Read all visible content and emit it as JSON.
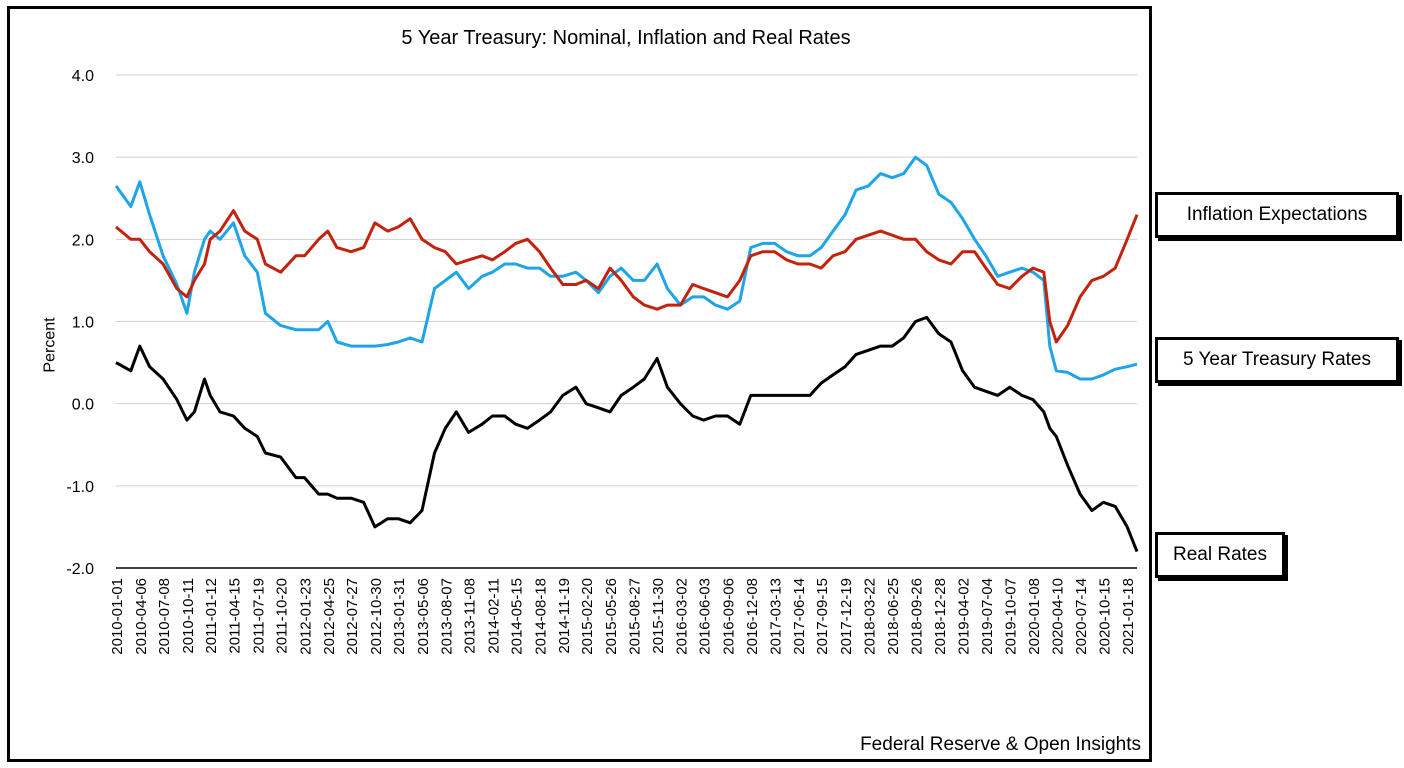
{
  "chart_data": {
    "type": "line",
    "title": "5 Year Treasury: Nominal, Inflation and Real Rates",
    "xlabel": "",
    "ylabel": "Percent",
    "ylim": [
      -2.0,
      4.0
    ],
    "yticks": [
      "4.0",
      "3.0",
      "2.0",
      "1.0",
      "0.0",
      "-1.0",
      "-2.0"
    ],
    "grid": true,
    "source": "Federal Reserve & Open Insights",
    "x_ticks": [
      "2010-01-01",
      "2010-04-06",
      "2010-07-08",
      "2010-10-11",
      "2011-01-12",
      "2011-04-15",
      "2011-07-19",
      "2011-10-20",
      "2012-01-23",
      "2012-04-25",
      "2012-07-27",
      "2012-10-30",
      "2013-01-31",
      "2013-05-06",
      "2013-08-07",
      "2013-11-08",
      "2014-02-11",
      "2014-05-15",
      "2014-08-18",
      "2014-11-19",
      "2015-02-20",
      "2015-05-26",
      "2015-08-27",
      "2015-11-30",
      "2016-03-02",
      "2016-06-03",
      "2016-09-06",
      "2016-12-08",
      "2017-03-13",
      "2017-06-14",
      "2017-09-15",
      "2017-12-19",
      "2018-03-22",
      "2018-06-25",
      "2018-09-26",
      "2018-12-28",
      "2019-04-02",
      "2019-07-04",
      "2019-10-07",
      "2020-01-08",
      "2020-04-10",
      "2020-07-14",
      "2020-10-15",
      "2021-01-18"
    ],
    "series": [
      {
        "name": "5 Year Treasury Rates",
        "color": "#1ea4e9",
        "x": [
          "2010-01-01",
          "2010-03-01",
          "2010-04-06",
          "2010-05-15",
          "2010-07-08",
          "2010-09-01",
          "2010-10-11",
          "2010-11-10",
          "2010-12-20",
          "2011-01-12",
          "2011-02-20",
          "2011-04-15",
          "2011-05-30",
          "2011-07-19",
          "2011-08-20",
          "2011-10-20",
          "2011-12-20",
          "2012-01-23",
          "2012-03-20",
          "2012-04-25",
          "2012-06-01",
          "2012-07-27",
          "2012-09-15",
          "2012-10-30",
          "2012-12-20",
          "2013-01-31",
          "2013-03-20",
          "2013-05-06",
          "2013-06-25",
          "2013-08-07",
          "2013-09-20",
          "2013-11-08",
          "2014-01-01",
          "2014-02-11",
          "2014-04-01",
          "2014-05-15",
          "2014-07-01",
          "2014-08-18",
          "2014-10-01",
          "2014-11-19",
          "2015-01-10",
          "2015-02-20",
          "2015-04-10",
          "2015-05-26",
          "2015-07-10",
          "2015-08-27",
          "2015-10-10",
          "2015-11-30",
          "2016-01-10",
          "2016-03-02",
          "2016-04-20",
          "2016-06-03",
          "2016-07-20",
          "2016-09-06",
          "2016-10-25",
          "2016-12-08",
          "2017-01-25",
          "2017-03-13",
          "2017-04-30",
          "2017-06-14",
          "2017-08-01",
          "2017-09-15",
          "2017-11-01",
          "2017-12-19",
          "2018-02-01",
          "2018-03-22",
          "2018-05-10",
          "2018-06-25",
          "2018-08-10",
          "2018-09-26",
          "2018-11-10",
          "2018-12-28",
          "2019-02-15",
          "2019-04-02",
          "2019-05-20",
          "2019-07-04",
          "2019-08-20",
          "2019-10-07",
          "2019-11-25",
          "2020-01-08",
          "2020-02-20",
          "2020-03-15",
          "2020-04-10",
          "2020-05-25",
          "2020-07-14",
          "2020-08-30",
          "2020-10-15",
          "2020-12-01",
          "2021-01-18",
          "2021-02-26"
        ],
        "values": [
          2.65,
          2.4,
          2.7,
          2.3,
          1.8,
          1.45,
          1.1,
          1.6,
          2.0,
          2.1,
          2.0,
          2.2,
          1.8,
          1.6,
          1.1,
          0.95,
          0.9,
          0.9,
          0.9,
          1.0,
          0.75,
          0.7,
          0.7,
          0.7,
          0.72,
          0.75,
          0.8,
          0.75,
          1.4,
          1.5,
          1.6,
          1.4,
          1.55,
          1.6,
          1.7,
          1.7,
          1.65,
          1.65,
          1.55,
          1.55,
          1.6,
          1.5,
          1.35,
          1.55,
          1.65,
          1.5,
          1.5,
          1.7,
          1.4,
          1.2,
          1.3,
          1.3,
          1.2,
          1.15,
          1.25,
          1.9,
          1.95,
          1.95,
          1.85,
          1.8,
          1.8,
          1.9,
          2.1,
          2.3,
          2.6,
          2.65,
          2.8,
          2.75,
          2.8,
          3.0,
          2.9,
          2.55,
          2.45,
          2.25,
          2.0,
          1.8,
          1.55,
          1.6,
          1.65,
          1.6,
          1.5,
          0.7,
          0.4,
          0.38,
          0.3,
          0.3,
          0.35,
          0.42,
          0.45,
          0.48
        ]
      },
      {
        "name": "Inflation Expectations",
        "color": "#c3220e",
        "x": [
          "2010-01-01",
          "2010-03-01",
          "2010-04-06",
          "2010-05-15",
          "2010-07-08",
          "2010-09-01",
          "2010-10-11",
          "2010-11-10",
          "2010-12-20",
          "2011-01-12",
          "2011-02-20",
          "2011-04-15",
          "2011-05-30",
          "2011-07-19",
          "2011-08-20",
          "2011-10-20",
          "2011-12-20",
          "2012-01-23",
          "2012-03-20",
          "2012-04-25",
          "2012-06-01",
          "2012-07-27",
          "2012-09-15",
          "2012-10-30",
          "2012-12-20",
          "2013-01-31",
          "2013-03-20",
          "2013-05-06",
          "2013-06-25",
          "2013-08-07",
          "2013-09-20",
          "2013-11-08",
          "2014-01-01",
          "2014-02-11",
          "2014-04-01",
          "2014-05-15",
          "2014-07-01",
          "2014-08-18",
          "2014-10-01",
          "2014-11-19",
          "2015-01-10",
          "2015-02-20",
          "2015-04-10",
          "2015-05-26",
          "2015-07-10",
          "2015-08-27",
          "2015-10-10",
          "2015-11-30",
          "2016-01-10",
          "2016-03-02",
          "2016-04-20",
          "2016-06-03",
          "2016-07-20",
          "2016-09-06",
          "2016-10-25",
          "2016-12-08",
          "2017-01-25",
          "2017-03-13",
          "2017-04-30",
          "2017-06-14",
          "2017-08-01",
          "2017-09-15",
          "2017-11-01",
          "2017-12-19",
          "2018-02-01",
          "2018-03-22",
          "2018-05-10",
          "2018-06-25",
          "2018-08-10",
          "2018-09-26",
          "2018-11-10",
          "2018-12-28",
          "2019-02-15",
          "2019-04-02",
          "2019-05-20",
          "2019-07-04",
          "2019-08-20",
          "2019-10-07",
          "2019-11-25",
          "2020-01-08",
          "2020-02-20",
          "2020-03-15",
          "2020-04-10",
          "2020-05-25",
          "2020-07-14",
          "2020-08-30",
          "2020-10-15",
          "2020-12-01",
          "2021-01-18",
          "2021-02-26"
        ],
        "values": [
          2.15,
          2.0,
          2.0,
          1.85,
          1.7,
          1.4,
          1.3,
          1.5,
          1.7,
          2.0,
          2.1,
          2.35,
          2.1,
          2.0,
          1.7,
          1.6,
          1.8,
          1.8,
          2.0,
          2.1,
          1.9,
          1.85,
          1.9,
          2.2,
          2.1,
          2.15,
          2.25,
          2.0,
          1.9,
          1.85,
          1.7,
          1.75,
          1.8,
          1.75,
          1.85,
          1.95,
          2.0,
          1.85,
          1.65,
          1.45,
          1.45,
          1.5,
          1.4,
          1.65,
          1.5,
          1.3,
          1.2,
          1.15,
          1.2,
          1.2,
          1.45,
          1.4,
          1.35,
          1.3,
          1.5,
          1.8,
          1.85,
          1.85,
          1.75,
          1.7,
          1.7,
          1.65,
          1.8,
          1.85,
          2.0,
          2.05,
          2.1,
          2.05,
          2.0,
          2.0,
          1.85,
          1.75,
          1.7,
          1.85,
          1.85,
          1.65,
          1.45,
          1.4,
          1.55,
          1.65,
          1.6,
          1.0,
          0.75,
          0.95,
          1.3,
          1.5,
          1.55,
          1.65,
          2.0,
          2.3
        ]
      },
      {
        "name": "Real Rates",
        "color": "#000000",
        "x": [
          "2010-01-01",
          "2010-03-01",
          "2010-04-06",
          "2010-05-15",
          "2010-07-08",
          "2010-09-01",
          "2010-10-11",
          "2010-11-10",
          "2010-12-20",
          "2011-01-12",
          "2011-02-20",
          "2011-04-15",
          "2011-05-30",
          "2011-07-19",
          "2011-08-20",
          "2011-10-20",
          "2011-12-20",
          "2012-01-23",
          "2012-03-20",
          "2012-04-25",
          "2012-06-01",
          "2012-07-27",
          "2012-09-15",
          "2012-10-30",
          "2012-12-20",
          "2013-01-31",
          "2013-03-20",
          "2013-05-06",
          "2013-06-25",
          "2013-08-07",
          "2013-09-20",
          "2013-11-08",
          "2014-01-01",
          "2014-02-11",
          "2014-04-01",
          "2014-05-15",
          "2014-07-01",
          "2014-08-18",
          "2014-10-01",
          "2014-11-19",
          "2015-01-10",
          "2015-02-20",
          "2015-04-10",
          "2015-05-26",
          "2015-07-10",
          "2015-08-27",
          "2015-10-10",
          "2015-11-30",
          "2016-01-10",
          "2016-03-02",
          "2016-04-20",
          "2016-06-03",
          "2016-07-20",
          "2016-09-06",
          "2016-10-25",
          "2016-12-08",
          "2017-01-25",
          "2017-03-13",
          "2017-04-30",
          "2017-06-14",
          "2017-08-01",
          "2017-09-15",
          "2017-11-01",
          "2017-12-19",
          "2018-02-01",
          "2018-03-22",
          "2018-05-10",
          "2018-06-25",
          "2018-08-10",
          "2018-09-26",
          "2018-11-10",
          "2018-12-28",
          "2019-02-15",
          "2019-04-02",
          "2019-05-20",
          "2019-07-04",
          "2019-08-20",
          "2019-10-07",
          "2019-11-25",
          "2020-01-08",
          "2020-02-20",
          "2020-03-15",
          "2020-04-10",
          "2020-05-25",
          "2020-07-14",
          "2020-08-30",
          "2020-10-15",
          "2020-12-01",
          "2021-01-18",
          "2021-02-26"
        ],
        "values": [
          0.5,
          0.4,
          0.7,
          0.45,
          0.3,
          0.05,
          -0.2,
          -0.1,
          0.3,
          0.1,
          -0.1,
          -0.15,
          -0.3,
          -0.4,
          -0.6,
          -0.65,
          -0.9,
          -0.9,
          -1.1,
          -1.1,
          -1.15,
          -1.15,
          -1.2,
          -1.5,
          -1.4,
          -1.4,
          -1.45,
          -1.3,
          -0.6,
          -0.3,
          -0.1,
          -0.35,
          -0.25,
          -0.15,
          -0.15,
          -0.25,
          -0.3,
          -0.2,
          -0.1,
          0.1,
          0.2,
          0.0,
          -0.05,
          -0.1,
          0.1,
          0.2,
          0.3,
          0.55,
          0.2,
          0.0,
          -0.15,
          -0.2,
          -0.15,
          -0.15,
          -0.25,
          0.1,
          0.1,
          0.1,
          0.1,
          0.1,
          0.1,
          0.25,
          0.35,
          0.45,
          0.6,
          0.65,
          0.7,
          0.7,
          0.8,
          1.0,
          1.05,
          0.85,
          0.75,
          0.4,
          0.2,
          0.15,
          0.1,
          0.2,
          0.1,
          0.05,
          -0.1,
          -0.3,
          -0.4,
          -0.75,
          -1.1,
          -1.3,
          -1.2,
          -1.25,
          -1.5,
          -1.8
        ]
      }
    ]
  },
  "callouts": {
    "inflation": "Inflation Expectations",
    "nominal": "5 Year Treasury Rates",
    "real": "Real Rates"
  }
}
